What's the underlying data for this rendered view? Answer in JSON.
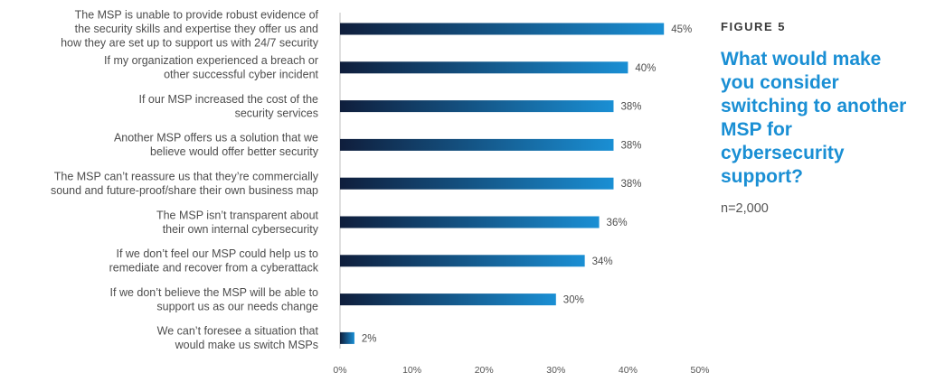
{
  "figure": {
    "label": "FIGURE 5",
    "title": "What would make you consider switching to another MSP for cybersecurity support?",
    "sample": "n=2,000"
  },
  "colors": {
    "bar_start": "#0f1e3c",
    "bar_end": "#1a8fd4",
    "title": "#1a8fd4"
  },
  "chart_data": {
    "type": "bar",
    "orientation": "horizontal",
    "categories": [
      [
        "The MSP is unable to provide robust evidence of",
        "the security skills and expertise they offer us and",
        "how they are set up to support us with 24/7 security"
      ],
      [
        "If my organization experienced a breach or",
        "other successful cyber incident"
      ],
      [
        "If our MSP increased the cost of the",
        "security services"
      ],
      [
        "Another MSP offers us a solution that we",
        "believe would offer better security"
      ],
      [
        "The MSP can’t reassure us that they’re commercially",
        "sound and future-proof/share their own business map"
      ],
      [
        "The MSP isn’t transparent about",
        "their own internal cybersecurity"
      ],
      [
        "If we don’t feel our MSP could help us to",
        "remediate and recover from a  cyberattack"
      ],
      [
        "If we don’t believe the MSP will be able to",
        "support us as our needs change"
      ],
      [
        "We can’t foresee a situation that",
        "would make us switch MSPs"
      ]
    ],
    "values": [
      45,
      40,
      38,
      38,
      38,
      36,
      34,
      30,
      2
    ],
    "value_labels": [
      "45%",
      "40%",
      "38%",
      "38%",
      "38%",
      "36%",
      "34%",
      "30%",
      "2%"
    ],
    "xlim": [
      0,
      50
    ],
    "ticks": [
      0,
      10,
      20,
      30,
      40,
      50
    ],
    "tick_labels": [
      "0%",
      "10%",
      "20%",
      "30%",
      "40%",
      "50%"
    ],
    "grid": false
  }
}
